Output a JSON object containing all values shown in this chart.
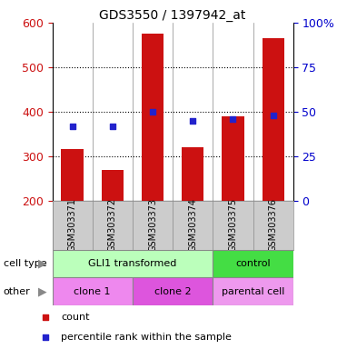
{
  "title": "GDS3550 / 1397942_at",
  "samples": [
    "GSM303371",
    "GSM303372",
    "GSM303373",
    "GSM303374",
    "GSM303375",
    "GSM303376"
  ],
  "counts": [
    315,
    270,
    575,
    320,
    390,
    565
  ],
  "percentile_ranks": [
    42,
    42,
    50,
    45,
    46,
    48
  ],
  "ylim_left": [
    200,
    600
  ],
  "ylim_right": [
    0,
    100
  ],
  "yticks_left": [
    200,
    300,
    400,
    500,
    600
  ],
  "yticks_right": [
    0,
    25,
    50,
    75,
    100
  ],
  "bar_color": "#cc1111",
  "dot_color": "#2222cc",
  "bar_bottom": 200,
  "cell_type_groups": [
    {
      "label": "GLI1 transformed",
      "span": [
        0,
        4
      ],
      "color": "#bbffbb"
    },
    {
      "label": "control",
      "span": [
        4,
        6
      ],
      "color": "#44dd44"
    }
  ],
  "other_groups": [
    {
      "label": "clone 1",
      "span": [
        0,
        2
      ],
      "color": "#ee88ee"
    },
    {
      "label": "clone 2",
      "span": [
        2,
        4
      ],
      "color": "#dd55dd"
    },
    {
      "label": "parental cell",
      "span": [
        4,
        6
      ],
      "color": "#ee99ee"
    }
  ],
  "background_color": "#ffffff",
  "tick_label_color_left": "#cc1111",
  "tick_label_color_right": "#0000cc",
  "bar_width": 0.55,
  "label_area_color": "#cccccc"
}
